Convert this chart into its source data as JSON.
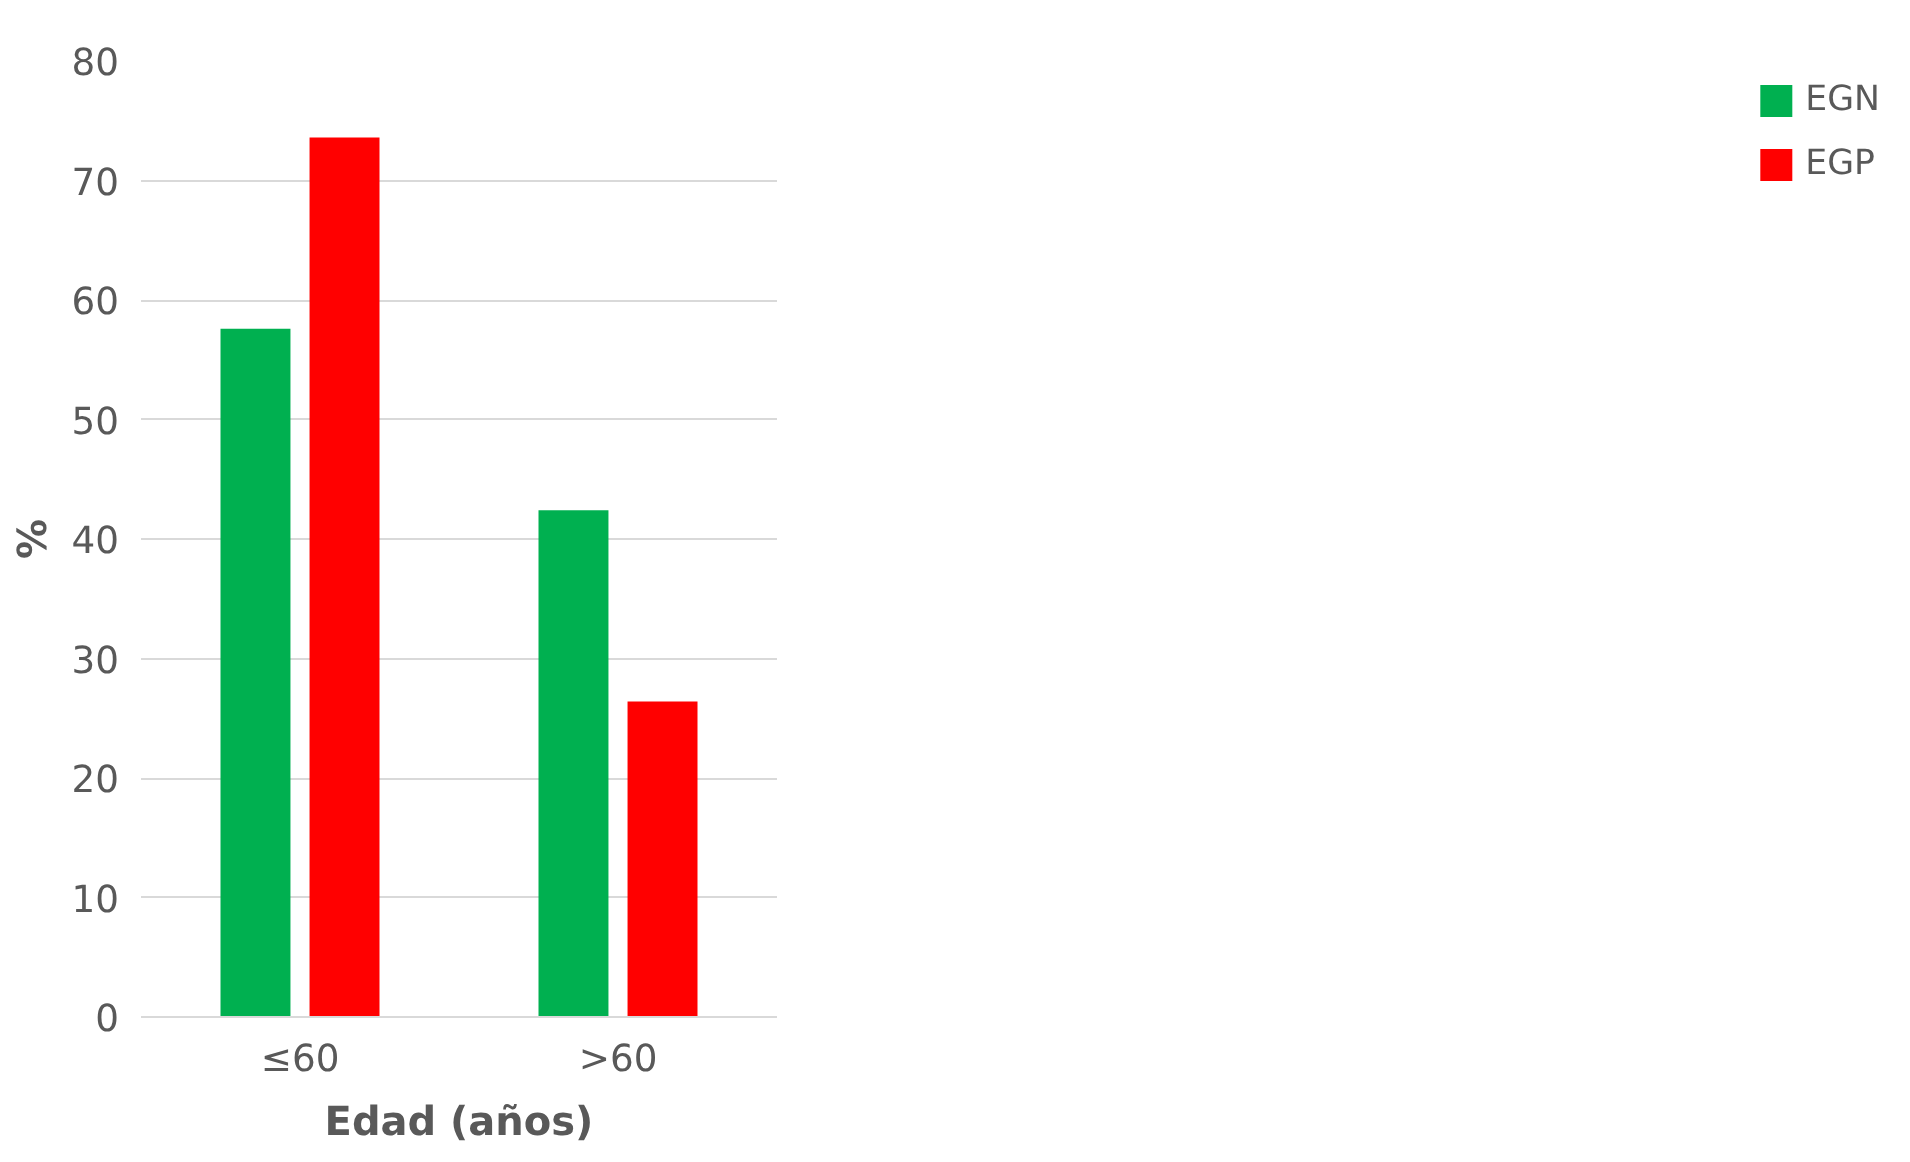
{
  "chart_data": {
    "type": "bar",
    "xlabel": "Edad (años)",
    "ylabel": "%",
    "categories": [
      "≤60",
      ">60"
    ],
    "series": [
      {
        "name": "EGN",
        "color": "#00b050",
        "values": [
          57.6,
          42.4
        ]
      },
      {
        "name": "EGP",
        "color": "#ff0000",
        "values": [
          73.6,
          26.4
        ]
      }
    ],
    "ylim": [
      0,
      80
    ],
    "yticks": [
      0,
      10,
      20,
      30,
      40,
      50,
      60,
      70,
      80
    ],
    "grid": "y",
    "legend": "right"
  }
}
